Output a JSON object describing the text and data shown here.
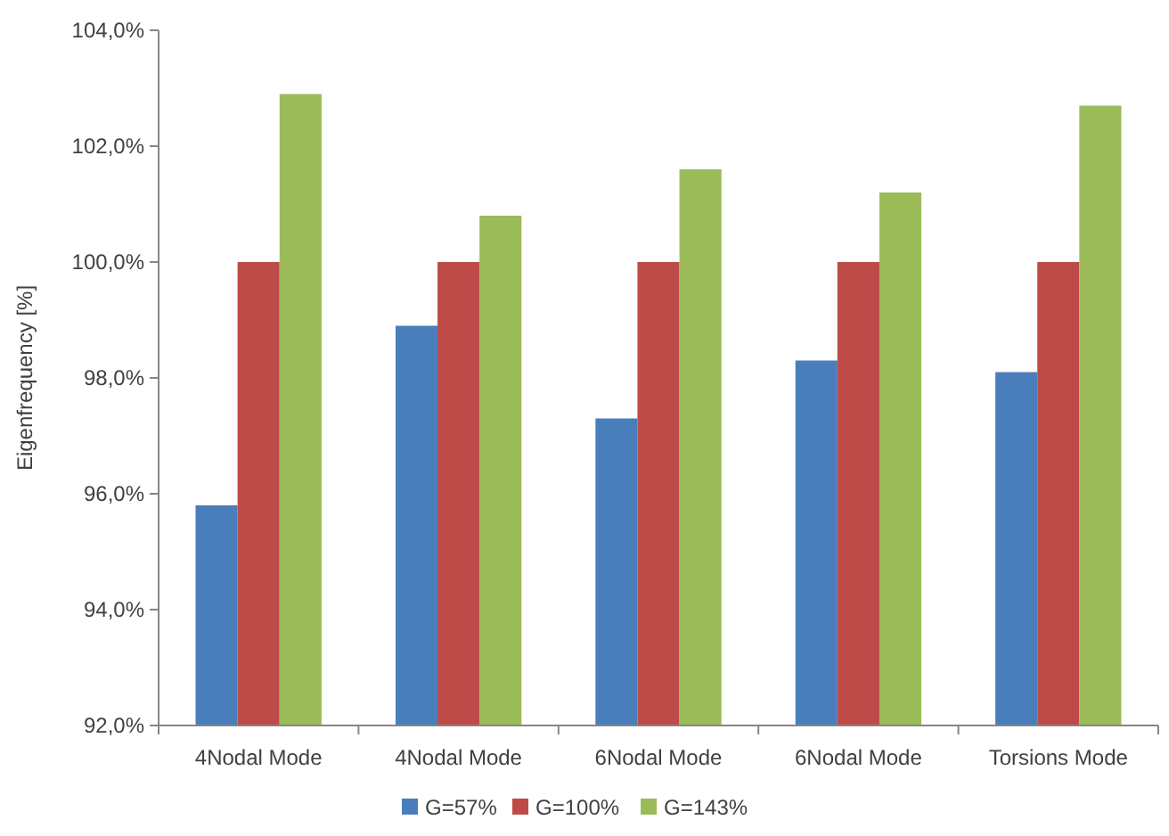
{
  "chart_data": {
    "type": "bar",
    "ylabel": "Eigenfrequency [%]",
    "categories": [
      "4Nodal Mode",
      "4Nodal Mode",
      "6Nodal Mode",
      "6Nodal Mode",
      "Torsions Mode"
    ],
    "series": [
      {
        "name": "G=57%",
        "color": "#4a7ebb",
        "values": [
          95.8,
          98.9,
          97.3,
          98.3,
          98.1
        ]
      },
      {
        "name": "G=100%",
        "color": "#be4b48",
        "values": [
          100,
          100,
          100,
          100,
          100
        ]
      },
      {
        "name": "G=143%",
        "color": "#9bbb59",
        "values": [
          102.9,
          100.8,
          101.6,
          101.2,
          102.7
        ]
      }
    ],
    "ylim": [
      92,
      104
    ],
    "yticks": [
      {
        "value": 92,
        "label": "92,0%"
      },
      {
        "value": 94,
        "label": "94,0%"
      },
      {
        "value": 96,
        "label": "96,0%"
      },
      {
        "value": 98,
        "label": "98,0%"
      },
      {
        "value": 100,
        "label": "100,0%"
      },
      {
        "value": 102,
        "label": "102,0%"
      },
      {
        "value": 104,
        "label": "104,0%"
      }
    ],
    "grid": false,
    "legend": "bottom"
  }
}
